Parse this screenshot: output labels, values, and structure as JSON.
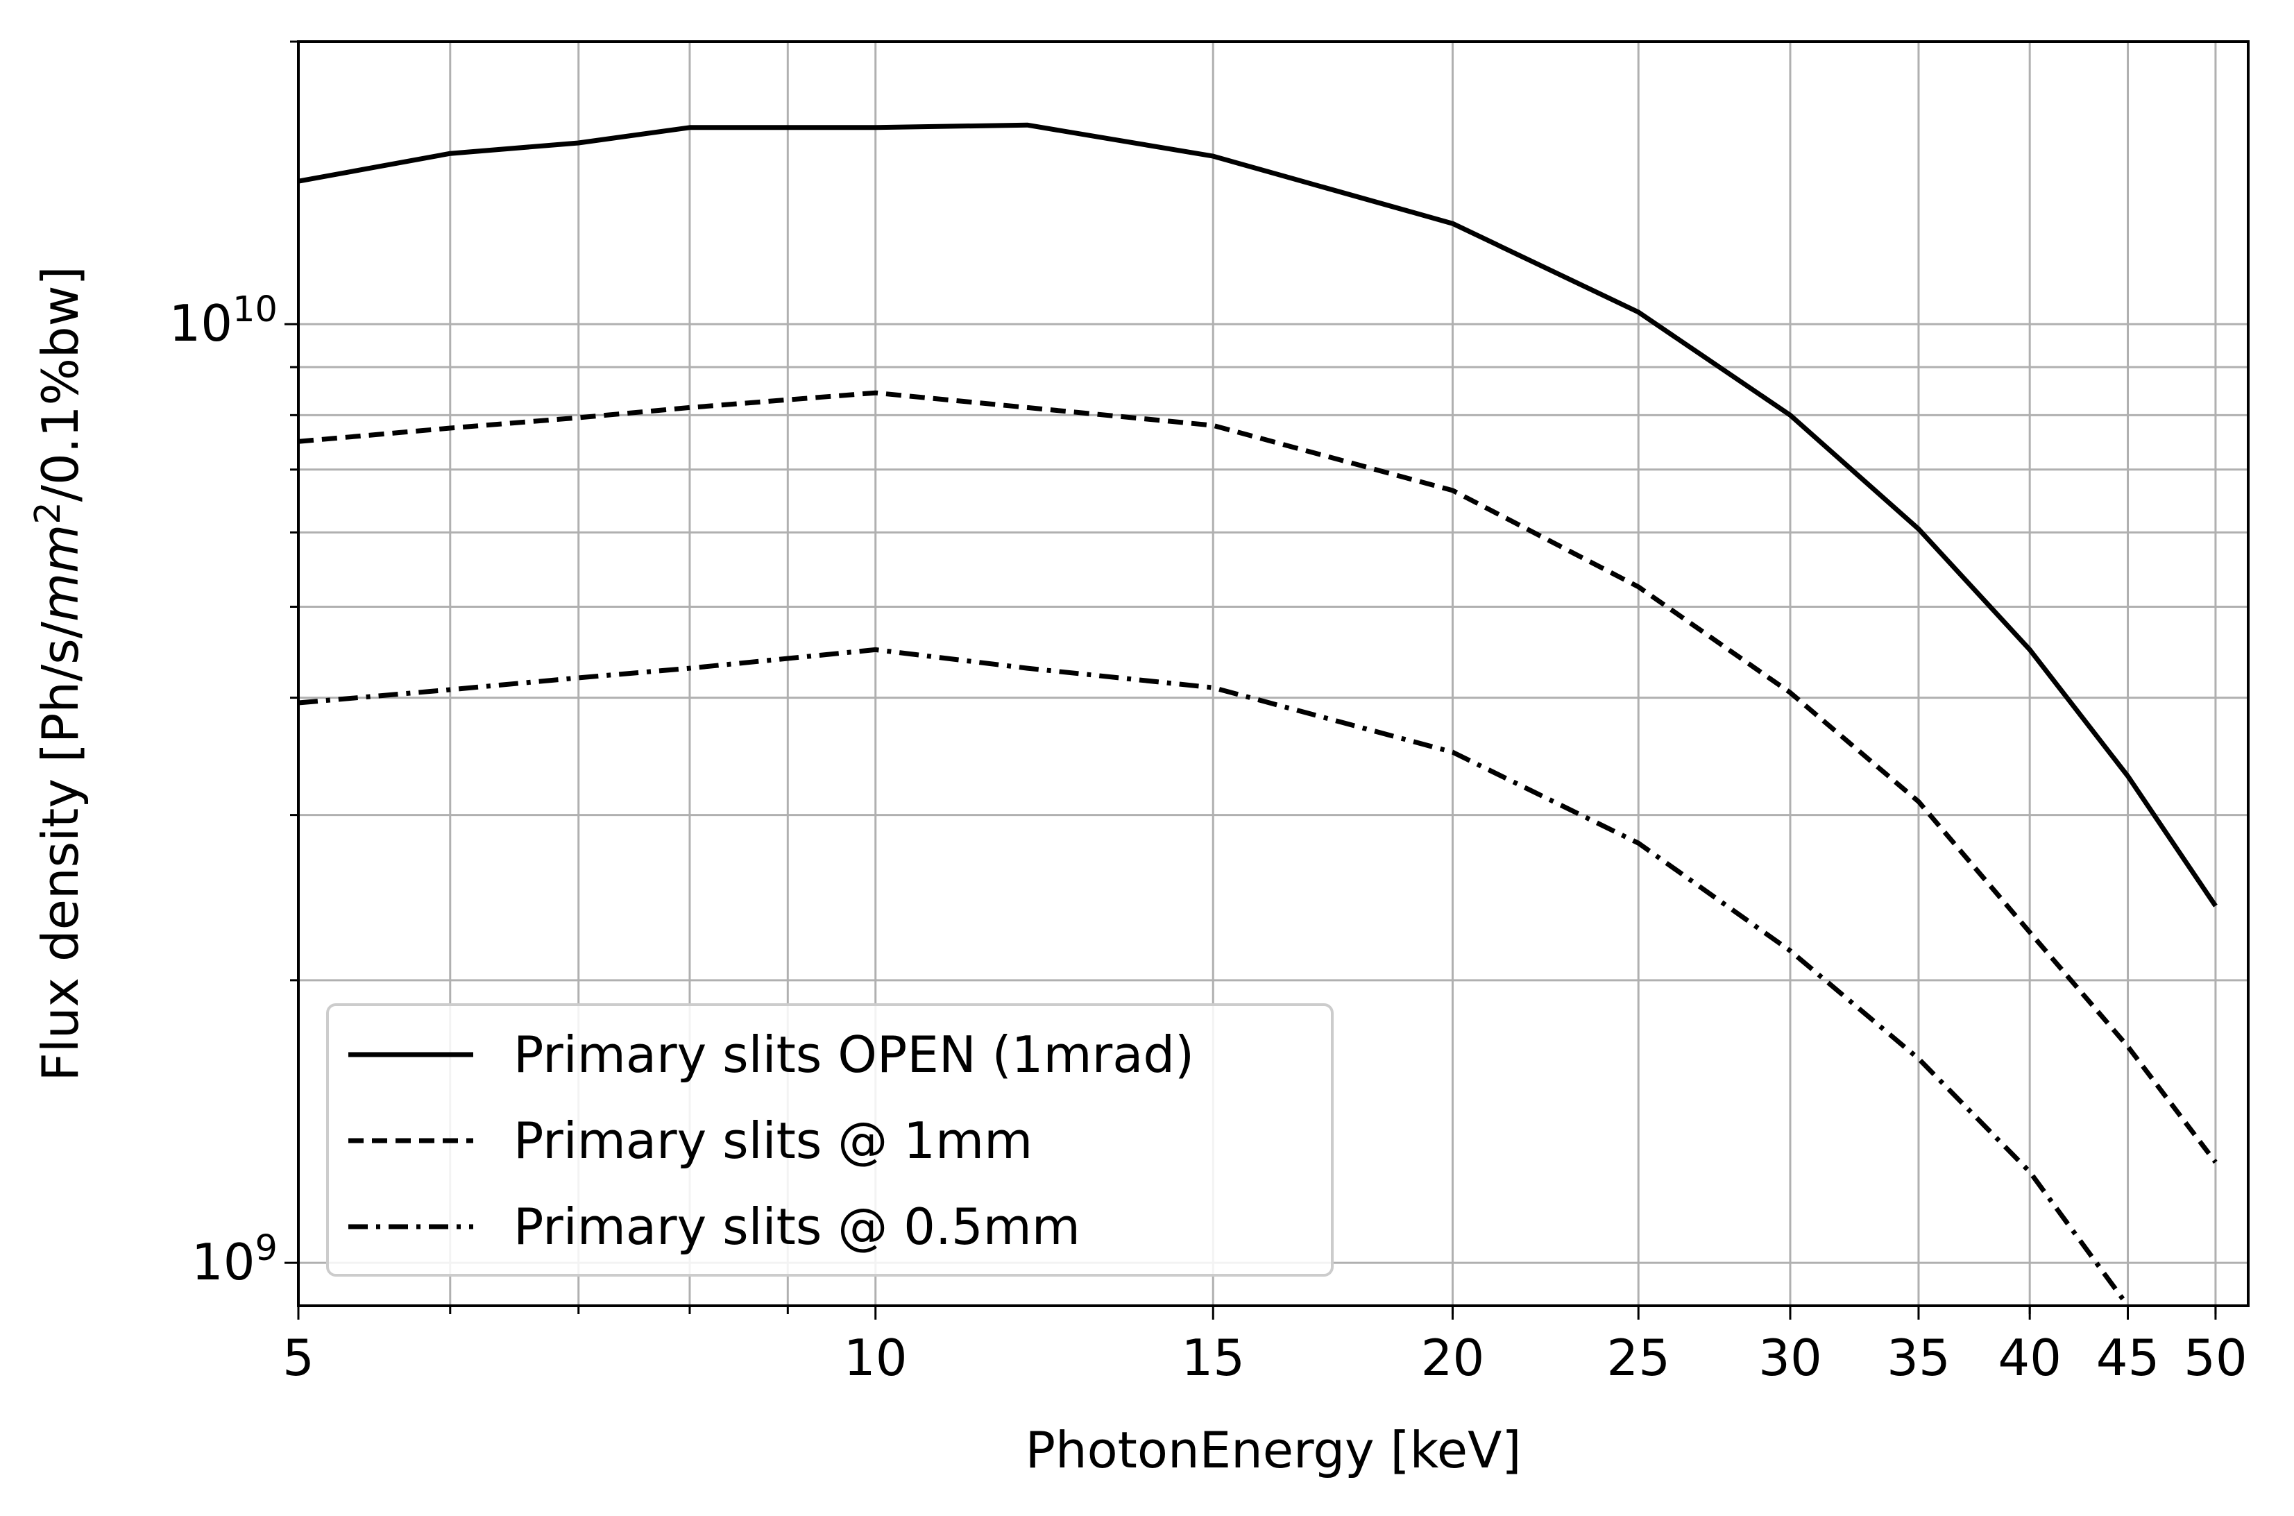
{
  "chart_data": {
    "type": "line",
    "xlabel": "PhotonEnergy [keV]",
    "ylabel": {
      "prefix": "Flux density [Ph/s/",
      "unit_base": "mm",
      "unit_exp": "2",
      "suffix": "/0.1%bw]"
    },
    "x_scale": "log",
    "y_scale": "log",
    "xlim": [
      5,
      52
    ],
    "ylim": [
      900000000.0,
      20000000000.0
    ],
    "x_ticks": [
      5,
      10,
      15,
      20,
      25,
      30,
      35,
      40,
      45,
      50
    ],
    "x_tick_labels": [
      "5",
      "10",
      "15",
      "20",
      "25",
      "30",
      "35",
      "40",
      "45",
      "50"
    ],
    "y_ticks": [
      {
        "value": 1000000000.0,
        "base": "10",
        "exp": "9"
      },
      {
        "value": 10000000000.0,
        "base": "10",
        "exp": "10"
      }
    ],
    "grid": true,
    "legend_position": "lower-left",
    "series": [
      {
        "name": "Primary slits OPEN (1mrad)",
        "style": "solid",
        "x": [
          5,
          6,
          7,
          8,
          10,
          12,
          15,
          20,
          25,
          30,
          35,
          40,
          45,
          50
        ],
        "y": [
          14200000000.0,
          15200000000.0,
          15600000000.0,
          16200000000.0,
          16200000000.0,
          16300000000.0,
          15100000000.0,
          12800000000.0,
          10300000000.0,
          8000000000.0,
          6050000000.0,
          4500000000.0,
          3300000000.0,
          2400000000.0
        ]
      },
      {
        "name": "Primary slits @ 1mm",
        "style": "dashed",
        "x": [
          5,
          6,
          7,
          8,
          10,
          12,
          15,
          20,
          25,
          30,
          35,
          40,
          45,
          50
        ],
        "y": [
          7500000000.0,
          7750000000.0,
          7950000000.0,
          8150000000.0,
          8450000000.0,
          8150000000.0,
          7800000000.0,
          6650000000.0,
          5250000000.0,
          4050000000.0,
          3100000000.0,
          2250000000.0,
          1700000000.0,
          1280000000.0
        ]
      },
      {
        "name": "Primary slits @ 0.5mm",
        "style": "dashdot",
        "x": [
          5,
          6,
          7,
          8,
          10,
          12,
          15,
          20,
          25,
          30,
          35,
          40,
          45
        ],
        "y": [
          3950000000.0,
          4080000000.0,
          4200000000.0,
          4300000000.0,
          4500000000.0,
          4300000000.0,
          4100000000.0,
          3500000000.0,
          2800000000.0,
          2150000000.0,
          1650000000.0,
          1250000000.0,
          900000000.0
        ]
      }
    ]
  }
}
